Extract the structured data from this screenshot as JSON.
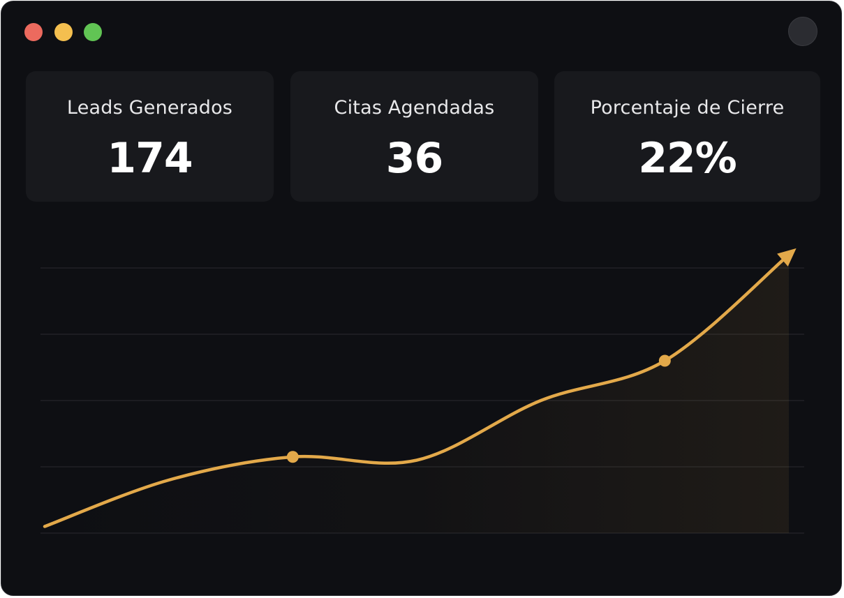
{
  "window": {
    "controls": [
      "close",
      "minimize",
      "maximize"
    ],
    "colors": {
      "close": "#ec6a5e",
      "minimize": "#f4bf4f",
      "maximize": "#61c454"
    }
  },
  "metrics": [
    {
      "label": "Leads Generados",
      "value": "174"
    },
    {
      "label": "Citas Agendadas",
      "value": "36"
    },
    {
      "label": "Porcentaje de Cierre",
      "value": "22%"
    }
  ],
  "chart_data": {
    "type": "line",
    "x": [
      0,
      1,
      2,
      3,
      4,
      5,
      6
    ],
    "values": [
      0.1,
      0.8,
      1.15,
      1.1,
      2.0,
      2.6,
      4.2
    ],
    "highlighted_points": [
      2,
      5
    ],
    "ylim": [
      0,
      4
    ],
    "grid": true,
    "color": "#e3a94a",
    "end_arrow": true
  }
}
